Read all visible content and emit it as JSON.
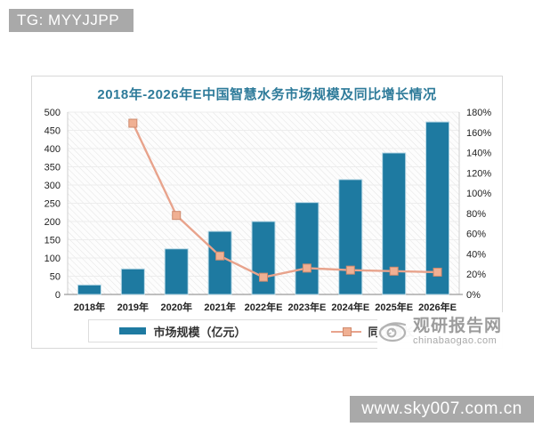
{
  "badges": {
    "top_left": "TG: MYYJJPP",
    "bottom_right": "www.sky007.com.cn"
  },
  "watermark": {
    "name": "观研报告网",
    "domain": "chinabaogao.com",
    "logo": "eye-swirl-icon"
  },
  "chart_data": {
    "type": "bar+line",
    "title": "2018年-2026年E中国智慧水务市场规模及同比增长情况",
    "title_color": "#2e7b9a",
    "categories": [
      "2018年",
      "2019年",
      "2020年",
      "2021年",
      "2022年E",
      "2023年E",
      "2024年E",
      "2025年E",
      "2026年E"
    ],
    "series": [
      {
        "name": "市场规模（亿元）",
        "type": "bar",
        "axis": "left",
        "color": "#1e7aa1",
        "halo_color": "#b9d9e6",
        "values": [
          26,
          70,
          125,
          173,
          200,
          252,
          315,
          388,
          473
        ]
      },
      {
        "name": "同比增长",
        "type": "line",
        "axis": "right",
        "unit": "%",
        "color": "#e8a38c",
        "marker_fill": "#f0b093",
        "marker_border": "#cf8a6d",
        "values": [
          null,
          169,
          78,
          38,
          17,
          26,
          24,
          23,
          22
        ]
      }
    ],
    "left_axis": {
      "min": 0,
      "max": 500,
      "step": 50,
      "ticks": [
        "0",
        "50",
        "100",
        "150",
        "200",
        "250",
        "300",
        "350",
        "400",
        "450",
        "500"
      ]
    },
    "right_axis": {
      "min": 0,
      "max": 180,
      "step": 20,
      "suffix": "%",
      "ticks": [
        "0%",
        "20%",
        "40%",
        "60%",
        "80%",
        "100%",
        "120%",
        "140%",
        "160%",
        "180%"
      ]
    },
    "grid": true,
    "legend_position": "bottom",
    "plot_background": "diagonal-hatch"
  }
}
